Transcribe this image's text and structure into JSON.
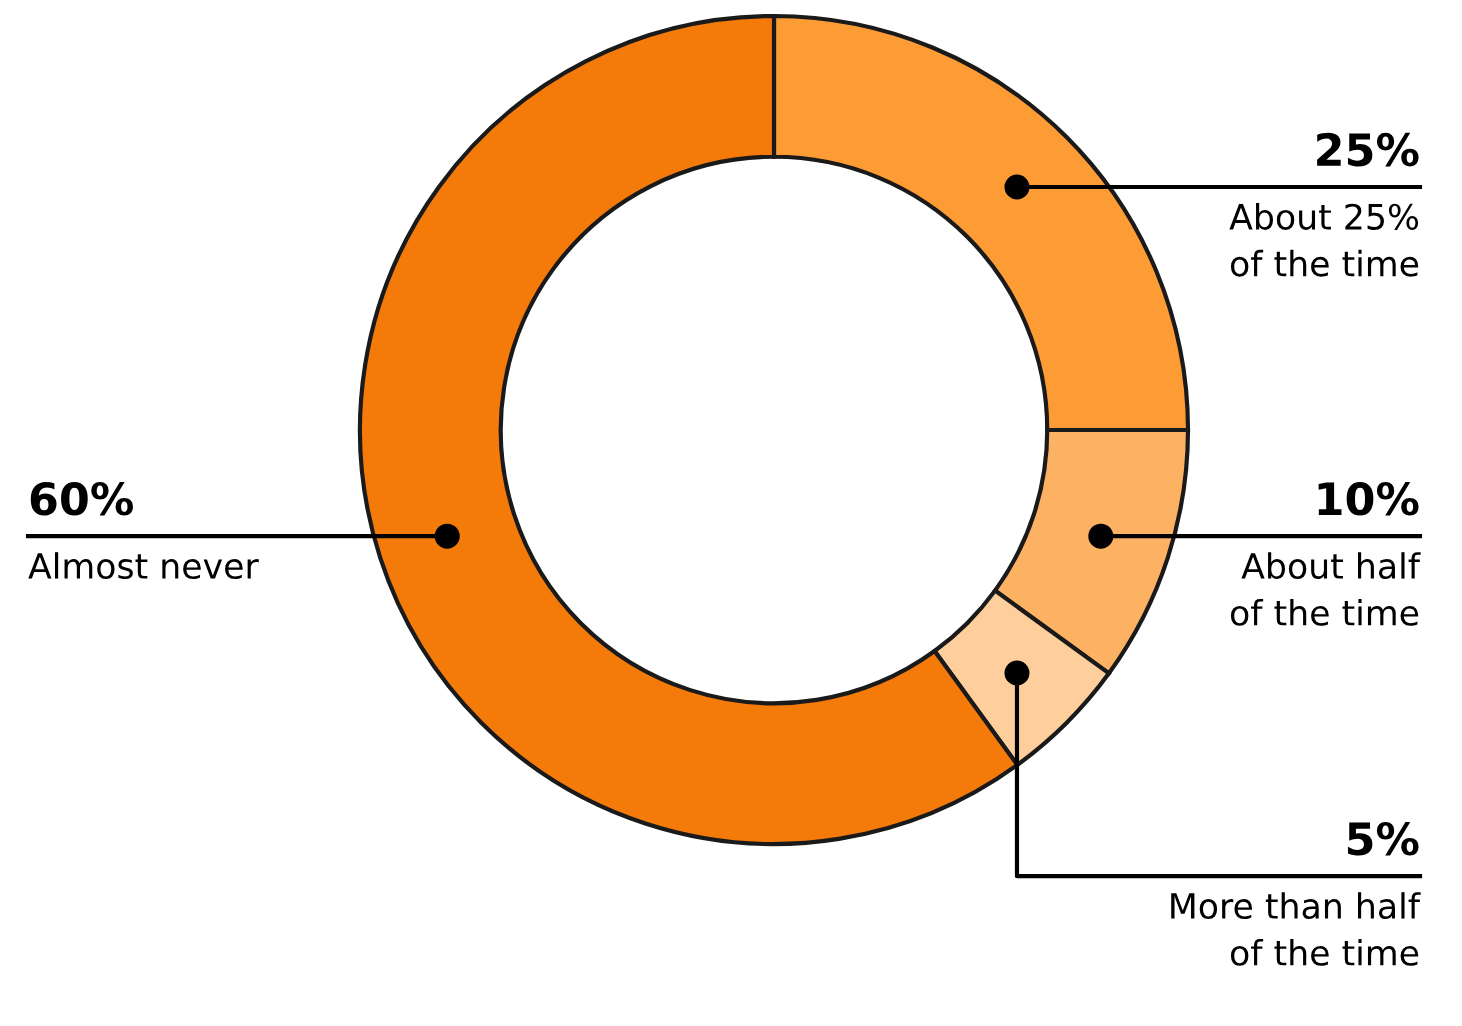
{
  "chart_data": {
    "type": "donut",
    "categories": [
      "About 25%\nof the time",
      "About half\nof the time",
      "More than half\nof the time",
      "Almost never"
    ],
    "values": [
      25,
      10,
      5,
      60
    ],
    "colors": [
      "#fd9b35",
      "#fdb163",
      "#fecf9c",
      "#f47a0a"
    ],
    "value_labels": [
      "25%",
      "10%",
      "5%",
      "60%"
    ]
  }
}
